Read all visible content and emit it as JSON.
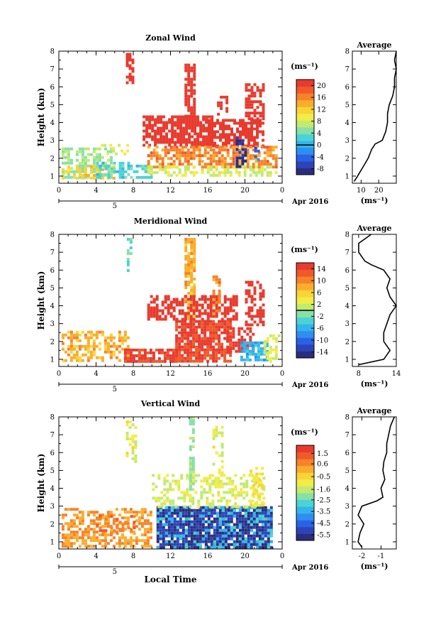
{
  "figure": {
    "x_axis_title": "Local Time",
    "date_label": "Apr 2016",
    "y_axis_title": "Height (km)",
    "avg_title": "Average",
    "unit_label": "(ms⁻¹)"
  },
  "colormap": [
    "#2a2d7c",
    "#2d44b8",
    "#2a62e6",
    "#2f8ef0",
    "#33b5ec",
    "#4bd2d6",
    "#86e0a8",
    "#c2ea6e",
    "#f0ec48",
    "#f9d436",
    "#f9ad2c",
    "#f6822a",
    "#ef5a2a",
    "#e93a2e"
  ],
  "chart_data": [
    {
      "type": "heatmap",
      "id": "zonal",
      "title": "Zonal Wind",
      "ylabel": "Height (km)",
      "xlabel": "",
      "x_ticks": [
        "0",
        "4",
        "8",
        "12",
        "16",
        "20",
        "0"
      ],
      "x_range": [
        0,
        24
      ],
      "day_label": "5",
      "y_ticks": [
        "1",
        "2",
        "3",
        "4",
        "5",
        "6",
        "7",
        "8"
      ],
      "y_range": [
        0.6,
        8.0
      ],
      "colorbar": {
        "ticks": [
          "20",
          "16",
          "12",
          "8",
          "4",
          "0",
          "-4",
          "-8"
        ],
        "range": [
          -10,
          22
        ],
        "zero_line": true
      },
      "fields": [
        {
          "t0": 0.3,
          "t1": 5.5,
          "h0": 1.0,
          "h1": 2.6,
          "v": 6,
          "p": 0.55
        },
        {
          "t0": 0.3,
          "t1": 5.8,
          "h0": 0.9,
          "h1": 1.6,
          "v": 12,
          "p": 0.45
        },
        {
          "t0": 4.0,
          "t1": 10.0,
          "h0": 0.9,
          "h1": 1.8,
          "v": 3,
          "p": 0.6
        },
        {
          "t0": 4.5,
          "t1": 7.5,
          "h0": 2.2,
          "h1": 2.8,
          "v": 8,
          "p": 0.3
        },
        {
          "t0": 7.2,
          "t1": 7.9,
          "h0": 6.2,
          "h1": 7.9,
          "v": 22,
          "p": 0.5
        },
        {
          "t0": 9.0,
          "t1": 16.5,
          "h0": 2.7,
          "h1": 4.4,
          "v": 22,
          "p": 0.8
        },
        {
          "t0": 13.5,
          "t1": 14.5,
          "h0": 4.4,
          "h1": 7.3,
          "v": 22,
          "p": 0.7
        },
        {
          "t0": 16.0,
          "t1": 22.0,
          "h0": 2.7,
          "h1": 4.2,
          "v": 22,
          "p": 0.75
        },
        {
          "t0": 20.0,
          "t1": 22.0,
          "h0": 4.2,
          "h1": 6.2,
          "v": 22,
          "p": 0.55
        },
        {
          "t0": 17.0,
          "t1": 18.0,
          "h0": 4.3,
          "h1": 5.5,
          "v": 22,
          "p": 0.4
        },
        {
          "t0": 9.5,
          "t1": 23.5,
          "h0": 1.5,
          "h1": 2.7,
          "v": 16,
          "p": 0.65
        },
        {
          "t0": 9.5,
          "t1": 23.5,
          "h0": 1.0,
          "h1": 1.6,
          "v": 8,
          "p": 0.55
        },
        {
          "t0": 19.0,
          "t1": 20.2,
          "h0": 1.6,
          "h1": 3.2,
          "v": -8,
          "p": 0.5
        },
        {
          "t0": 21.0,
          "t1": 21.6,
          "h0": 1.7,
          "h1": 2.8,
          "v": -4,
          "p": 0.45
        }
      ],
      "profile": {
        "x_ticks": [
          "10",
          "20"
        ],
        "x_range": [
          5,
          30
        ],
        "h": [
          0.7,
          1.0,
          1.5,
          2.0,
          2.5,
          2.8,
          3.0,
          3.5,
          4.0,
          4.5,
          5.0,
          5.5,
          6.0,
          6.5,
          7.0,
          7.5,
          8.0
        ],
        "v": [
          6,
          8,
          11,
          14,
          16,
          18,
          22,
          24,
          25,
          25,
          26,
          28,
          29,
          29,
          30,
          29,
          30
        ]
      }
    },
    {
      "type": "heatmap",
      "id": "meridional",
      "title": "Meridional Wind",
      "ylabel": "Height (km)",
      "xlabel": "",
      "x_ticks": [
        "0",
        "4",
        "8",
        "12",
        "16",
        "20",
        "0"
      ],
      "x_range": [
        0,
        24
      ],
      "day_label": "5",
      "y_ticks": [
        "1",
        "2",
        "3",
        "4",
        "5",
        "6",
        "7",
        "8"
      ],
      "y_range": [
        0.6,
        8.0
      ],
      "colorbar": {
        "ticks": [
          "14",
          "10",
          "6",
          "2",
          "-2",
          "-6",
          "-10",
          "-14"
        ],
        "range": [
          -16,
          16
        ],
        "zero_line": true
      },
      "fields": [
        {
          "t0": 0.3,
          "t1": 7.5,
          "h0": 1.0,
          "h1": 2.6,
          "v": 8,
          "p": 0.55
        },
        {
          "t0": 7.3,
          "t1": 7.9,
          "h0": 6.0,
          "h1": 7.8,
          "v": -2,
          "p": 0.5
        },
        {
          "t0": 7.0,
          "t1": 12.5,
          "h0": 0.9,
          "h1": 1.6,
          "v": 14,
          "p": 0.8
        },
        {
          "t0": 12.5,
          "t1": 18.5,
          "h0": 0.9,
          "h1": 3.2,
          "v": 14,
          "p": 0.85
        },
        {
          "t0": 13.5,
          "t1": 14.5,
          "h0": 3.2,
          "h1": 7.8,
          "v": 8,
          "p": 0.75
        },
        {
          "t0": 9.5,
          "t1": 19.0,
          "h0": 3.2,
          "h1": 4.6,
          "v": 16,
          "p": 0.6
        },
        {
          "t0": 16.5,
          "t1": 17.3,
          "h0": 3.6,
          "h1": 5.7,
          "v": 10,
          "p": 0.5
        },
        {
          "t0": 20.0,
          "t1": 22.0,
          "h0": 2.9,
          "h1": 5.4,
          "v": 16,
          "p": 0.55
        },
        {
          "t0": 18.0,
          "t1": 21.0,
          "h0": 1.5,
          "h1": 2.8,
          "v": 16,
          "p": 0.6
        },
        {
          "t0": 19.5,
          "t1": 22.5,
          "h0": 0.9,
          "h1": 2.0,
          "v": -6,
          "p": 0.75
        },
        {
          "t0": 22.0,
          "t1": 23.8,
          "h0": 0.9,
          "h1": 2.4,
          "v": 2,
          "p": 0.5
        }
      ],
      "profile": {
        "x_ticks": [
          "8",
          "14"
        ],
        "x_range": [
          7,
          14
        ],
        "h": [
          0.7,
          1.0,
          1.5,
          2.0,
          2.5,
          3.0,
          3.5,
          4.0,
          4.5,
          5.0,
          5.5,
          6.0,
          6.3,
          6.5,
          7.0,
          7.5,
          8.0
        ],
        "v": [
          8,
          12,
          13,
          12,
          12,
          12.5,
          13,
          14,
          13,
          12.5,
          13,
          12,
          10,
          9,
          8,
          8,
          10
        ]
      }
    },
    {
      "type": "heatmap",
      "id": "vertical",
      "title": "Vertical Wind",
      "ylabel": "Height (km)",
      "xlabel": "Local Time",
      "x_ticks": [
        "0",
        "4",
        "8",
        "12",
        "16",
        "20",
        "0"
      ],
      "x_range": [
        0,
        24
      ],
      "day_label": "5",
      "y_ticks": [
        "1",
        "2",
        "3",
        "4",
        "5",
        "6",
        "7",
        "8"
      ],
      "y_range": [
        0.6,
        8.0
      ],
      "colorbar": {
        "ticks": [
          "1.5",
          "0.6",
          "-0.5",
          "-1.6",
          "-2.5",
          "-3.5",
          "-4.5",
          "-5.5"
        ],
        "range": [
          -6.0,
          2.2
        ],
        "zero_line": false
      },
      "fields": [
        {
          "t0": 0.3,
          "t1": 10.0,
          "h0": 0.7,
          "h1": 2.9,
          "v": 0.4,
          "p": 0.55
        },
        {
          "t0": 4.0,
          "t1": 8.0,
          "h0": 1.5,
          "h1": 2.5,
          "v": 0.9,
          "p": 0.35
        },
        {
          "t0": 7.2,
          "t1": 8.2,
          "h0": 5.5,
          "h1": 7.8,
          "v": -1.2,
          "p": 0.45
        },
        {
          "t0": 10.5,
          "t1": 22.8,
          "h0": 0.7,
          "h1": 3.0,
          "v": -5.4,
          "p": 0.85
        },
        {
          "t0": 10.5,
          "t1": 22.8,
          "h0": 0.7,
          "h1": 3.0,
          "v": -3.2,
          "p": 0.25
        },
        {
          "t0": 10.0,
          "t1": 22.0,
          "h0": 3.0,
          "h1": 4.8,
          "v": -1.4,
          "p": 0.45
        },
        {
          "t0": 14.0,
          "t1": 14.6,
          "h0": 4.0,
          "h1": 8.0,
          "v": -2.0,
          "p": 0.7
        },
        {
          "t0": 16.5,
          "t1": 17.5,
          "h0": 4.0,
          "h1": 7.5,
          "v": -1.2,
          "p": 0.5
        },
        {
          "t0": 20.5,
          "t1": 22.0,
          "h0": 3.0,
          "h1": 5.2,
          "v": -0.8,
          "p": 0.5
        }
      ],
      "profile": {
        "x_ticks": [
          "-2",
          "-1"
        ],
        "x_range": [
          -2.5,
          -0.2
        ],
        "h": [
          0.7,
          1.0,
          1.5,
          2.0,
          2.5,
          3.0,
          3.3,
          3.5,
          4.0,
          4.5,
          5.0,
          5.5,
          6.0,
          6.5,
          7.0,
          7.5,
          8.0
        ],
        "v": [
          -2.0,
          -2.2,
          -2.1,
          -1.9,
          -2.2,
          -2.0,
          -1.2,
          -0.9,
          -1.0,
          -0.8,
          -0.9,
          -0.85,
          -0.7,
          -0.7,
          -0.6,
          -0.5,
          -0.3
        ]
      }
    }
  ]
}
